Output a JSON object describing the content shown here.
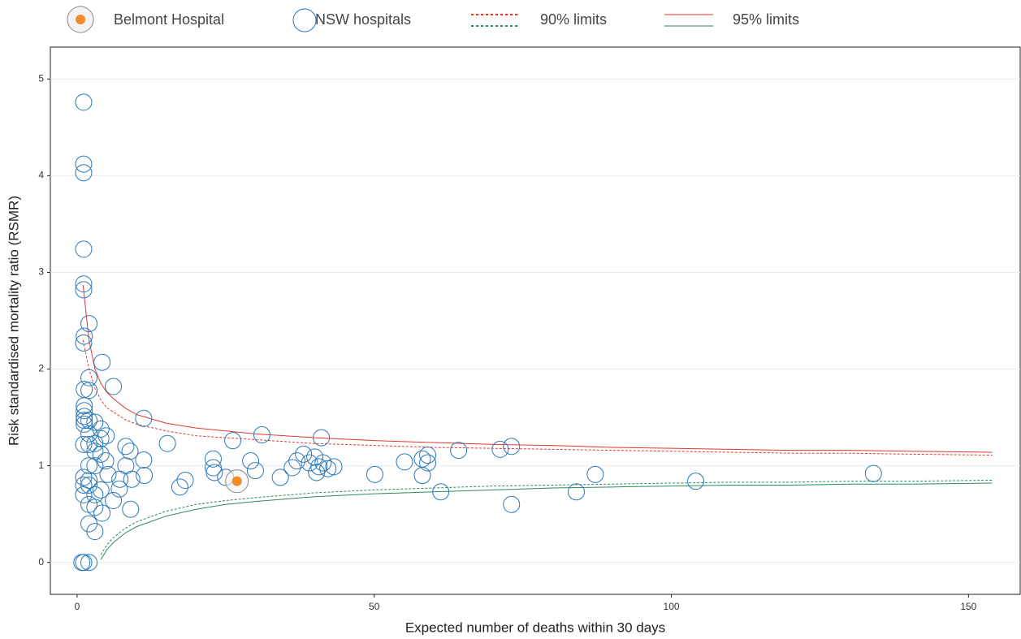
{
  "chart_data": {
    "type": "scatter",
    "xlabel": "Expected number of deaths within 30 days",
    "ylabel": "Risk standardised mortality ratio (RSMR)",
    "xlim": [
      -4.5,
      158.7
    ],
    "ylim": [
      -0.33,
      5.33
    ],
    "xticks": [
      0,
      50,
      100,
      150
    ],
    "yticks": [
      0,
      1,
      2,
      3,
      4,
      5
    ],
    "grid": "y",
    "series": [
      {
        "name": "Belmont Hospital",
        "color": "#f28a2c",
        "x": [
          26.9
        ],
        "values": [
          0.84
        ]
      },
      {
        "name": "NSW hospitals",
        "color": "#2a77b8",
        "x": [
          1.1,
          1.1,
          1.1,
          1.1,
          1.1,
          1.1,
          2.0,
          1.2,
          1.1,
          4.2,
          2.0,
          6.1,
          1.2,
          2.0,
          1.2,
          1.2,
          1.2,
          1.2,
          2.0,
          3.0,
          1.2,
          11.2,
          4.0,
          2.0,
          4.9,
          4.0,
          3.0,
          1.1,
          2.0,
          15.2,
          26.2,
          31.1,
          41.1,
          8.2,
          3.0,
          4.0,
          8.9,
          11.2,
          22.9,
          22.9,
          23.1,
          2.0,
          3.0,
          4.8,
          8.2,
          29.2,
          30.0,
          34.2,
          36.2,
          37.0,
          38.1,
          39.1,
          40.0,
          40.7,
          40.3,
          41.4,
          42.2,
          43.2,
          50.1,
          55.1,
          58.1,
          59.0,
          59.0,
          58.1,
          61.2,
          64.2,
          71.2,
          73.1,
          73.1,
          84.0,
          87.2,
          104.1,
          134.0,
          1.1,
          2.0,
          1.1,
          5.2,
          7.2,
          9.2,
          11.3,
          18.2,
          17.3,
          25.0,
          7.1,
          1.1,
          2.0,
          3.0,
          4.0,
          2.0,
          3.0,
          6.1,
          4.2,
          9.0,
          2.0,
          3.0,
          0.8,
          1.1,
          2.0
        ],
        "values": [
          4.76,
          4.12,
          4.03,
          3.24,
          2.88,
          2.82,
          2.47,
          2.34,
          2.27,
          2.07,
          1.91,
          1.82,
          1.79,
          1.78,
          1.62,
          1.57,
          1.51,
          1.47,
          1.47,
          1.45,
          1.43,
          1.49,
          1.38,
          1.33,
          1.31,
          1.28,
          1.23,
          1.22,
          1.22,
          1.23,
          1.26,
          1.32,
          1.29,
          1.2,
          1.15,
          1.12,
          1.15,
          1.06,
          1.07,
          0.98,
          0.93,
          1.0,
          1.0,
          1.05,
          1.0,
          1.05,
          0.95,
          0.88,
          0.98,
          1.05,
          1.12,
          1.03,
          1.09,
          0.99,
          0.93,
          1.03,
          0.97,
          0.99,
          0.91,
          1.04,
          1.07,
          1.11,
          1.03,
          0.9,
          0.73,
          1.16,
          1.17,
          1.2,
          0.6,
          0.73,
          0.91,
          0.84,
          0.92,
          0.88,
          0.85,
          0.8,
          0.91,
          0.86,
          0.86,
          0.9,
          0.85,
          0.78,
          0.88,
          0.76,
          0.7,
          0.8,
          0.7,
          0.75,
          0.6,
          0.57,
          0.64,
          0.51,
          0.55,
          0.4,
          0.32,
          0,
          0,
          0
        ]
      }
    ],
    "limit_x": [
      1,
      2,
      3,
      4,
      5,
      6,
      8,
      10,
      15,
      20,
      25,
      30,
      40,
      50,
      60,
      70,
      80,
      90,
      100,
      110,
      120,
      130,
      140,
      154
    ],
    "limits": [
      {
        "name": "90% limits",
        "dashed": true,
        "upper_color": "#e0392b",
        "lower_color": "#2e8a5a",
        "upper": [
          2.3,
          2.0,
          1.8,
          1.68,
          1.6,
          1.56,
          1.48,
          1.43,
          1.36,
          1.31,
          1.29,
          1.27,
          1.23,
          1.21,
          1.19,
          1.18,
          1.17,
          1.16,
          1.15,
          1.14,
          1.13,
          1.13,
          1.12,
          1.11
        ],
        "lower": [
          null,
          null,
          null,
          0.08,
          0.18,
          0.25,
          0.35,
          0.42,
          0.53,
          0.6,
          0.64,
          0.67,
          0.72,
          0.75,
          0.77,
          0.79,
          0.8,
          0.81,
          0.82,
          0.83,
          0.83,
          0.84,
          0.84,
          0.85
        ]
      },
      {
        "name": "95% limits",
        "dashed": false,
        "upper_color": "#e0392b",
        "lower_color": "#2e8a5a",
        "upper": [
          2.87,
          2.3,
          2.0,
          1.85,
          1.76,
          1.7,
          1.6,
          1.53,
          1.44,
          1.39,
          1.36,
          1.33,
          1.29,
          1.26,
          1.24,
          1.22,
          1.21,
          1.19,
          1.18,
          1.17,
          1.16,
          1.16,
          1.15,
          1.14
        ],
        "lower": [
          null,
          null,
          null,
          0.03,
          0.13,
          0.2,
          0.3,
          0.37,
          0.48,
          0.55,
          0.6,
          0.63,
          0.68,
          0.71,
          0.73,
          0.75,
          0.77,
          0.78,
          0.79,
          0.8,
          0.8,
          0.81,
          0.81,
          0.82
        ]
      }
    ]
  }
}
